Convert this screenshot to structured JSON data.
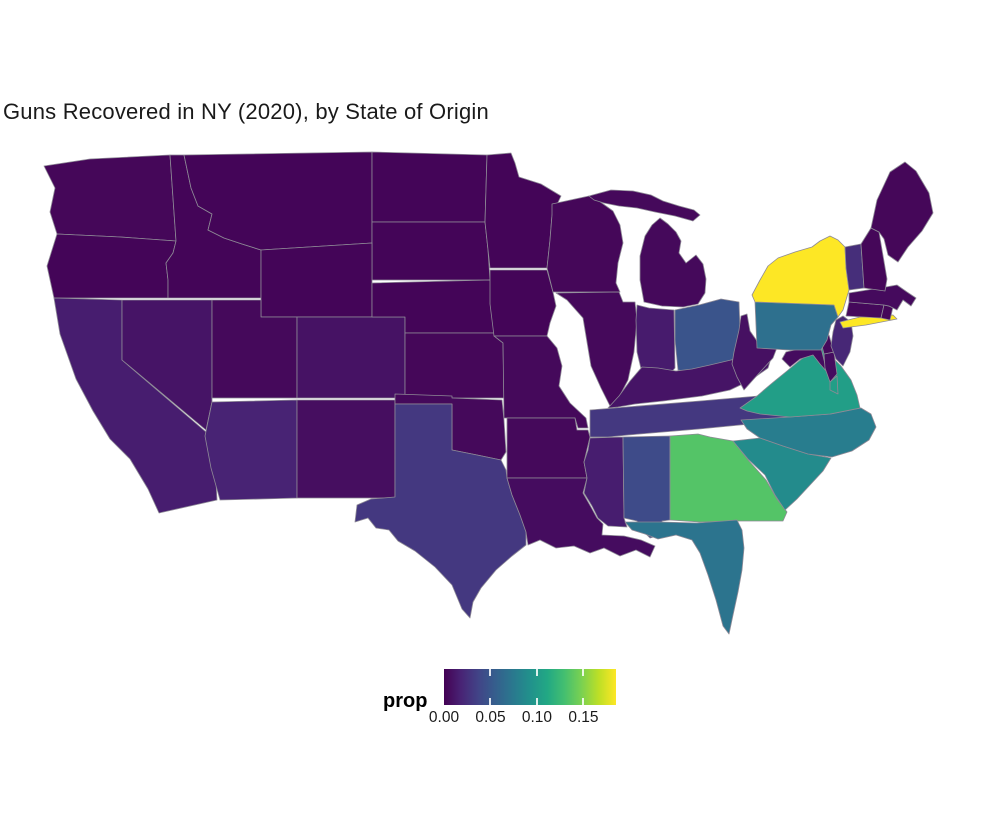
{
  "title": "Guns Recovered in NY (2020), by State of Origin",
  "legend": {
    "label": "prop",
    "tick_labels": [
      "0.00",
      "0.05",
      "0.10",
      "0.15"
    ],
    "tick_values": [
      0,
      0.05,
      0.1,
      0.15
    ]
  },
  "colors": {
    "background": "#ffffff",
    "title_text": "#1a1a1a",
    "legend_text": "#000000",
    "state_border": "#8e8a96",
    "legend_tick": "rgba(255,255,255,0.85)"
  },
  "chart_data": {
    "type": "heatmap",
    "subtype": "us-state-choropleth",
    "title": "Guns Recovered in NY (2020), by State of Origin",
    "value_field": "prop",
    "domain": [
      0,
      0.185
    ],
    "colormap": "viridis",
    "colormap_anchors": [
      "#440154",
      "#482475",
      "#414487",
      "#355f8d",
      "#2a788e",
      "#21918c",
      "#22a884",
      "#44bf70",
      "#7ad151",
      "#bddf26",
      "#fde725"
    ],
    "legend_position": "bottom",
    "grid": false,
    "states": [
      {
        "state": "NY",
        "prop": 0.185
      },
      {
        "state": "GA",
        "prop": 0.135
      },
      {
        "state": "VA",
        "prop": 0.103
      },
      {
        "state": "SC",
        "prop": 0.088
      },
      {
        "state": "NC",
        "prop": 0.078
      },
      {
        "state": "FL",
        "prop": 0.071
      },
      {
        "state": "PA",
        "prop": 0.068
      },
      {
        "state": "OH",
        "prop": 0.048
      },
      {
        "state": "AL",
        "prop": 0.042
      },
      {
        "state": "TN",
        "prop": 0.03
      },
      {
        "state": "TX",
        "prop": 0.03
      },
      {
        "state": "VT",
        "prop": 0.024
      },
      {
        "state": "NJ",
        "prop": 0.02
      },
      {
        "state": "AZ",
        "prop": 0.018
      },
      {
        "state": "MS",
        "prop": 0.015
      },
      {
        "state": "CA",
        "prop": 0.015
      },
      {
        "state": "IN",
        "prop": 0.014
      },
      {
        "state": "KY",
        "prop": 0.01
      },
      {
        "state": "NV",
        "prop": 0.01
      },
      {
        "state": "CO",
        "prop": 0.009
      },
      {
        "state": "WV",
        "prop": 0.008
      },
      {
        "state": "NM",
        "prop": 0.007
      },
      {
        "state": "MD",
        "prop": 0.006
      },
      {
        "state": "LA",
        "prop": 0.006
      },
      {
        "state": "MA",
        "prop": 0.005
      },
      {
        "state": "CT",
        "prop": 0.004
      },
      {
        "state": "DE",
        "prop": 0.004
      },
      {
        "state": "MO",
        "prop": 0.004
      },
      {
        "state": "IL",
        "prop": 0.004
      },
      {
        "state": "MI",
        "prop": 0.004
      },
      {
        "state": "AR",
        "prop": 0.004
      },
      {
        "state": "UT",
        "prop": 0.004
      },
      {
        "state": "OK",
        "prop": 0.004
      },
      {
        "state": "WA",
        "prop": 0.003
      },
      {
        "state": "KS",
        "prop": 0.003
      },
      {
        "state": "ME",
        "prop": 0.003
      },
      {
        "state": "NH",
        "prop": 0.003
      },
      {
        "state": "RI",
        "prop": 0.003
      },
      {
        "state": "WI",
        "prop": 0.003
      },
      {
        "state": "OR",
        "prop": 0.002
      },
      {
        "state": "ID",
        "prop": 0.002
      },
      {
        "state": "MT",
        "prop": 0.002
      },
      {
        "state": "WY",
        "prop": 0.002
      },
      {
        "state": "ND",
        "prop": 0.002
      },
      {
        "state": "SD",
        "prop": 0.002
      },
      {
        "state": "NE",
        "prop": 0.002
      },
      {
        "state": "IA",
        "prop": 0.002
      },
      {
        "state": "MN",
        "prop": 0.002
      }
    ]
  }
}
